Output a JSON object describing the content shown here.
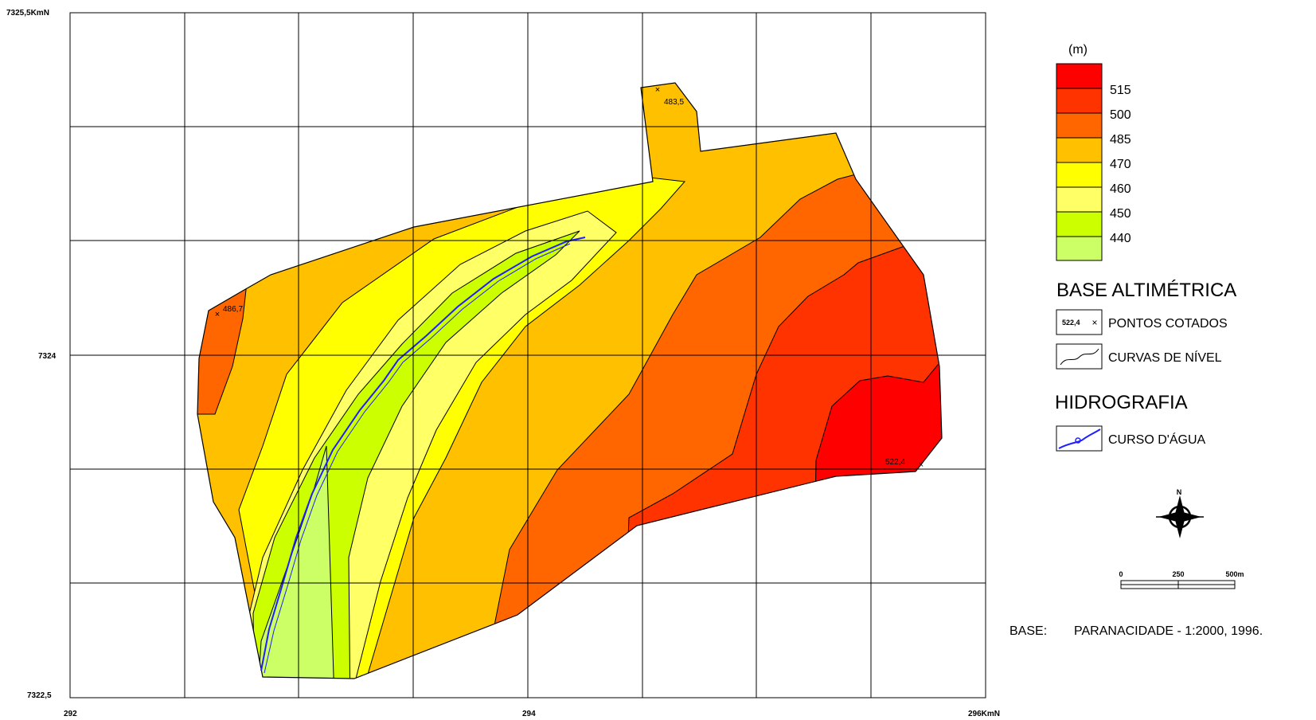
{
  "map": {
    "axis_labels": {
      "y_top": "7325,5KmN",
      "y_mid": "7324",
      "y_bottom": "7322,5",
      "x_left": "292",
      "x_mid": "294",
      "x_right": "296KmN"
    },
    "spot_heights": [
      "483,5",
      "486,7",
      "522,4"
    ]
  },
  "legend": {
    "unit": "(m)",
    "classes": [
      {
        "label": "515",
        "color": "#ff0000"
      },
      {
        "label": "500",
        "color": "#ff3300"
      },
      {
        "label": "485",
        "color": "#ff6600"
      },
      {
        "label": "470",
        "color": "#ffc000"
      },
      {
        "label": "460",
        "color": "#ffff00"
      },
      {
        "label": "450",
        "color": "#ffff66"
      },
      {
        "label": "440",
        "color": "#ccff00"
      },
      {
        "label": "",
        "color": "#ccff66"
      }
    ],
    "base_altimetrica": {
      "title": "BASE ALTIMÉTRICA",
      "pontos_sample": "522,4",
      "pontos_label": "PONTOS COTADOS",
      "curvas_label": "CURVAS DE NÍVEL"
    },
    "hidrografia": {
      "title": "HIDROGRAFIA",
      "curso_label": "CURSO D'ÁGUA"
    },
    "north_label": "N",
    "scale": {
      "labels": [
        "0",
        "250",
        "500m"
      ]
    },
    "source": {
      "prefix": "BASE:",
      "text": "PARANACIDADE - 1:2000, 1996."
    }
  }
}
